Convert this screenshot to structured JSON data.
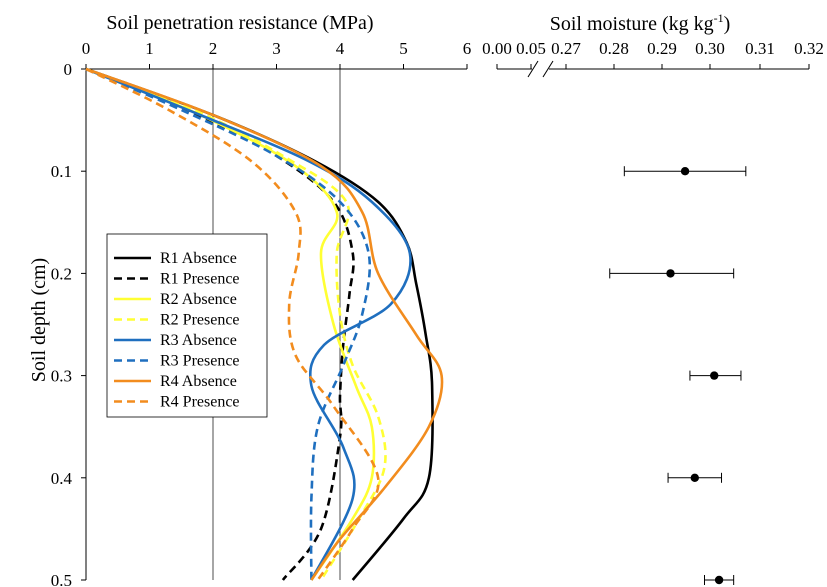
{
  "chart_data": [
    {
      "type": "line",
      "title": "Soil penetration resistance (MPa)",
      "ylabel": "Soil depth (cm)",
      "xlim": [
        0,
        6
      ],
      "ylim": [
        0,
        0.5
      ],
      "x_ticks": [
        "0",
        "1",
        "2",
        "3",
        "4",
        "5",
        "6"
      ],
      "y_ticks": [
        "0",
        "0.1",
        "0.2",
        "0.3",
        "0.4",
        "0.5"
      ],
      "reference_lines_x": [
        2,
        4
      ],
      "legend_position": "left",
      "series": [
        {
          "name": "R1 Absence",
          "color": "#000000",
          "dash": "solid",
          "x": [
            0,
            2.0,
            3.6,
            4.6,
            5.05,
            5.2,
            5.35,
            5.45,
            5.4,
            5.0,
            4.2
          ],
          "y": [
            0,
            0.045,
            0.09,
            0.13,
            0.17,
            0.21,
            0.26,
            0.31,
            0.4,
            0.44,
            0.5
          ]
        },
        {
          "name": "R1 Presence",
          "color": "#000000",
          "dash": "dash",
          "x": [
            0,
            1.6,
            3.0,
            3.9,
            4.2,
            4.15,
            4.05,
            4.0,
            4.0,
            3.7,
            3.1
          ],
          "y": [
            0,
            0.04,
            0.085,
            0.13,
            0.18,
            0.22,
            0.27,
            0.32,
            0.36,
            0.45,
            0.5
          ]
        },
        {
          "name": "R2 Absence",
          "color": "#ffff33",
          "dash": "solid",
          "x": [
            0,
            1.8,
            3.3,
            3.95,
            3.7,
            3.9,
            4.25,
            4.5,
            4.5,
            4.2,
            3.55
          ],
          "y": [
            0,
            0.045,
            0.095,
            0.14,
            0.18,
            0.25,
            0.31,
            0.35,
            0.4,
            0.44,
            0.5
          ]
        },
        {
          "name": "R2 Presence",
          "color": "#ffff33",
          "dash": "dash",
          "x": [
            0,
            1.7,
            3.1,
            4.1,
            3.95,
            4.0,
            4.2,
            4.6,
            4.7,
            4.3,
            3.7
          ],
          "y": [
            0,
            0.04,
            0.085,
            0.13,
            0.18,
            0.24,
            0.29,
            0.34,
            0.39,
            0.44,
            0.5
          ]
        },
        {
          "name": "R3 Absence",
          "color": "#1f6fbf",
          "dash": "solid",
          "x": [
            0,
            1.8,
            3.5,
            4.5,
            5.1,
            4.8,
            3.75,
            3.55,
            4.05,
            4.2,
            3.55
          ],
          "y": [
            0,
            0.045,
            0.09,
            0.13,
            0.18,
            0.23,
            0.27,
            0.31,
            0.37,
            0.42,
            0.5
          ]
        },
        {
          "name": "R3 Presence",
          "color": "#1f6fbf",
          "dash": "dash",
          "x": [
            0,
            1.5,
            3.0,
            4.0,
            4.45,
            4.35,
            4.05,
            3.65,
            3.55,
            3.55
          ],
          "y": [
            0,
            0.04,
            0.085,
            0.13,
            0.18,
            0.24,
            0.29,
            0.35,
            0.42,
            0.5
          ]
        },
        {
          "name": "R4 Absence",
          "color": "#f28c1e",
          "dash": "solid",
          "x": [
            0,
            2.0,
            3.7,
            4.35,
            4.6,
            5.2,
            5.6,
            5.4,
            4.7,
            4.0,
            3.55
          ],
          "y": [
            0,
            0.045,
            0.095,
            0.14,
            0.2,
            0.26,
            0.3,
            0.35,
            0.41,
            0.46,
            0.5
          ]
        },
        {
          "name": "R4 Presence",
          "color": "#f28c1e",
          "dash": "dash",
          "x": [
            0,
            1.3,
            2.6,
            3.3,
            3.35,
            3.2,
            3.3,
            3.9,
            4.6,
            4.2,
            3.65
          ],
          "y": [
            0,
            0.04,
            0.09,
            0.14,
            0.18,
            0.23,
            0.28,
            0.33,
            0.4,
            0.45,
            0.5
          ]
        }
      ]
    },
    {
      "type": "scatter",
      "title": "Soil moisture  (kg kg",
      "title_sup": "-1",
      "title_close": ")",
      "x_ticks": [
        "0.00",
        "0.05",
        "0.27",
        "0.28",
        "0.29",
        "0.30",
        "0.31",
        "0.32"
      ],
      "axis_break": "between 0.05 and 0.27",
      "xlim": [
        0.26,
        0.32
      ],
      "ylim": [
        0,
        0.5
      ],
      "points": [
        {
          "y": 0.1,
          "x": 0.2945,
          "err_low": 0.282,
          "err_high": 0.307
        },
        {
          "y": 0.2,
          "x": 0.2915,
          "err_low": 0.279,
          "err_high": 0.3045
        },
        {
          "y": 0.3,
          "x": 0.3005,
          "err_low": 0.2955,
          "err_high": 0.306
        },
        {
          "y": 0.4,
          "x": 0.2965,
          "err_low": 0.291,
          "err_high": 0.302
        },
        {
          "y": 0.5,
          "x": 0.3015,
          "err_low": 0.2985,
          "err_high": 0.3045
        }
      ]
    }
  ]
}
